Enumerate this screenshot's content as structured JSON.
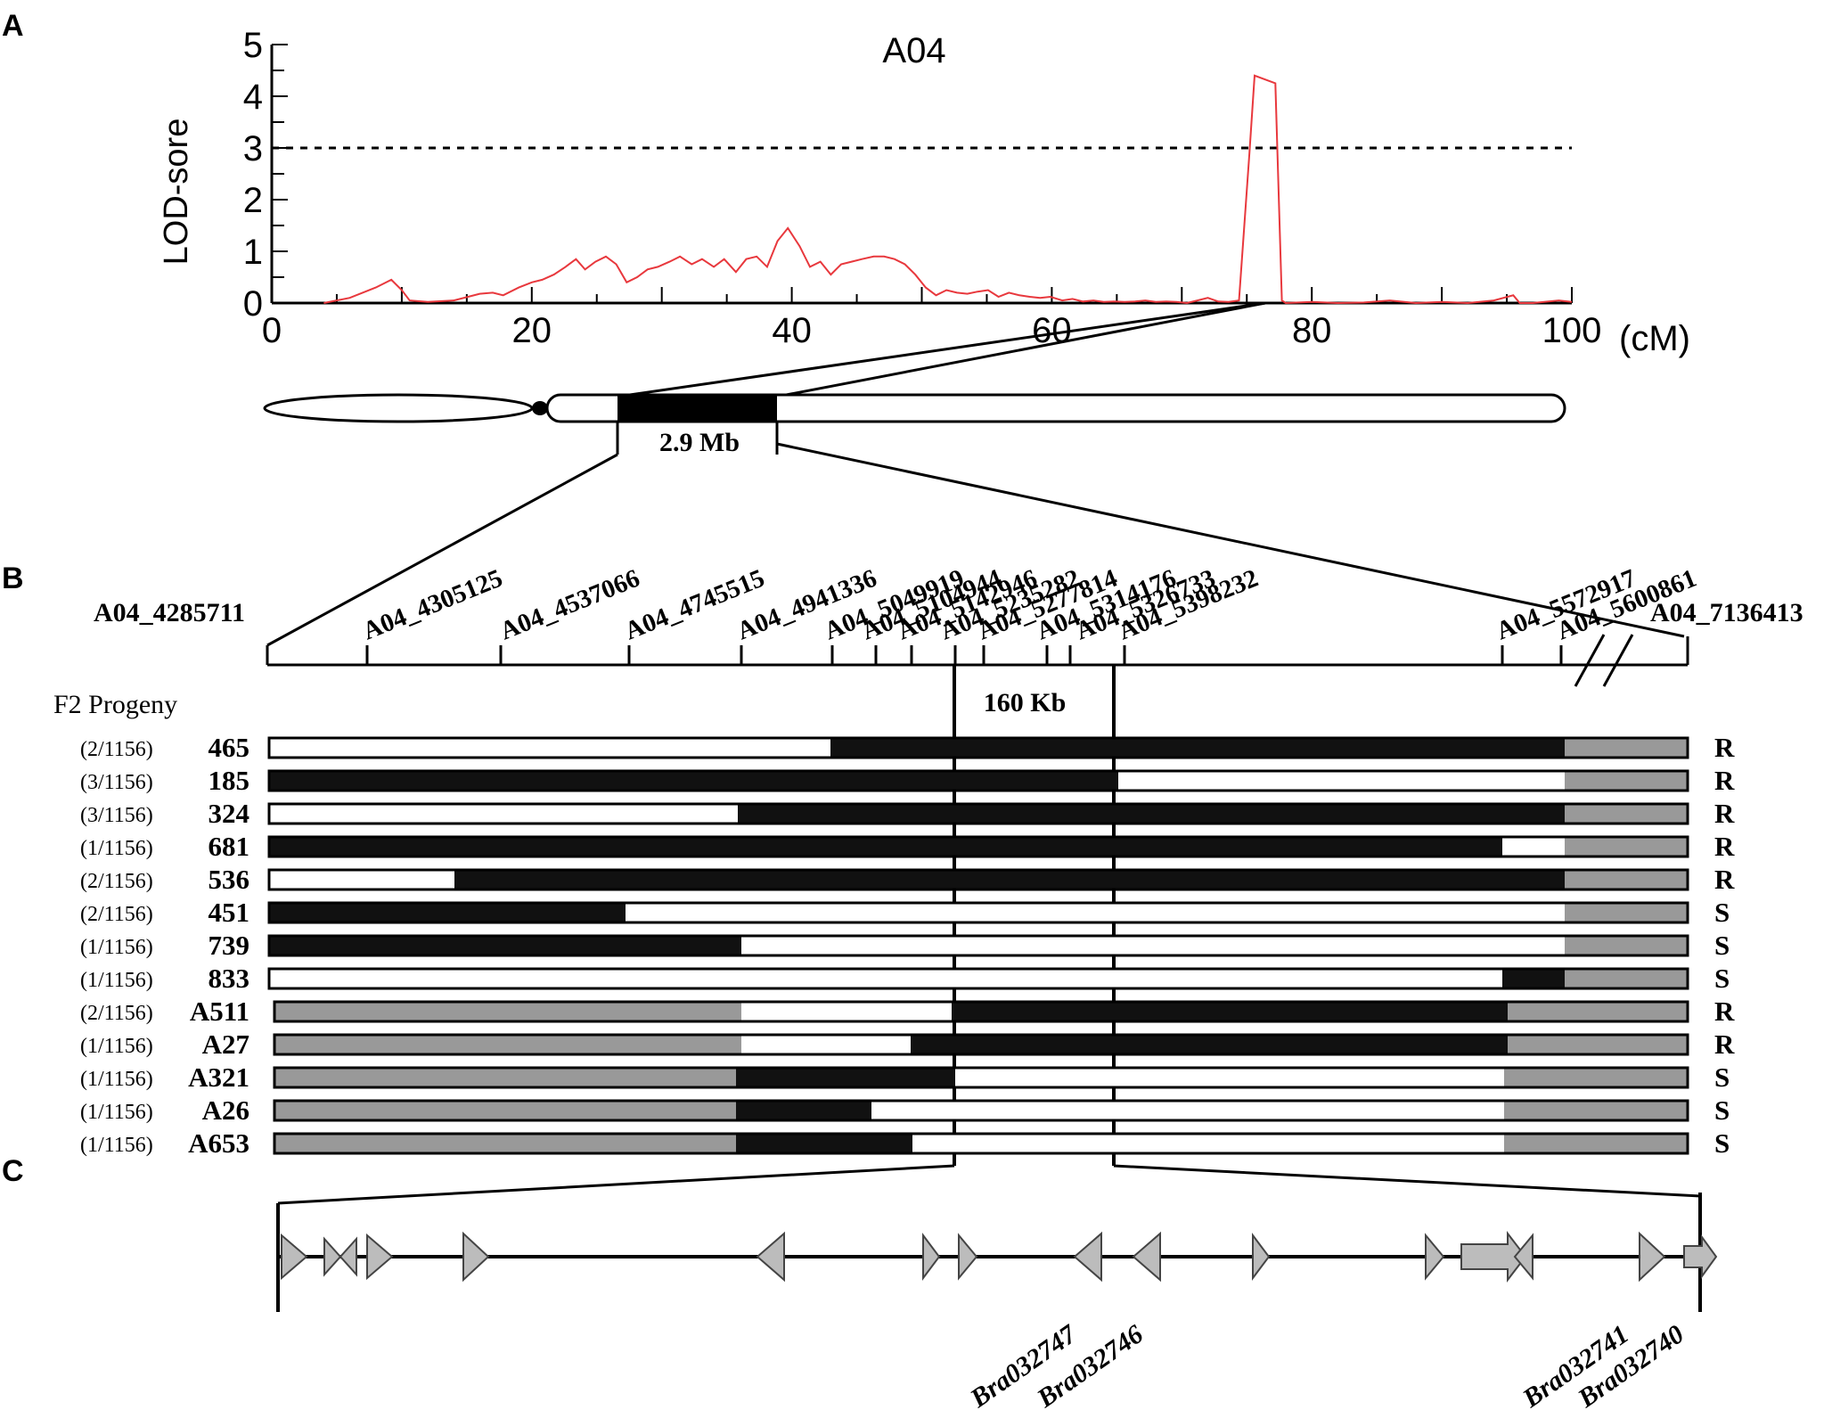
{
  "panels": {
    "a": "A",
    "b": "B",
    "c": "C"
  },
  "chart_data": {
    "type": "line",
    "title": "A04",
    "ylabel": "LOD-sore",
    "xlabel": "",
    "x_unit_label": "(cM)",
    "xlim": [
      0,
      100
    ],
    "ylim": [
      0,
      5
    ],
    "x_ticks": [
      "0",
      "20",
      "40",
      "60",
      "80",
      "100"
    ],
    "y_ticks": [
      "0",
      "1",
      "2",
      "3",
      "4",
      "5"
    ],
    "threshold": 3,
    "line_color": "#e8383d",
    "series": [
      {
        "name": "LOD",
        "x": [
          4,
          6,
          8,
          9.2,
          10,
          10.6,
          12,
          14,
          16,
          17,
          17.8,
          19,
          20,
          20.8,
          21.7,
          22.6,
          23.4,
          24.1,
          24.9,
          25.7,
          26.5,
          27.3,
          28.1,
          28.9,
          29.7,
          30.6,
          31.4,
          32.3,
          33.1,
          34,
          34.8,
          35.7,
          36.5,
          37.3,
          38.1,
          38.9,
          39.7,
          40.6,
          41.4,
          42.2,
          43,
          43.8,
          44.6,
          45.4,
          46.3,
          47.1,
          47.9,
          48.7,
          49.5,
          50.3,
          51.1,
          51.9,
          52.7,
          53.5,
          54.3,
          55.1,
          55.9,
          56.7,
          57.5,
          58.3,
          59.1,
          59.9,
          60.8,
          61.6,
          62.4,
          63.2,
          64,
          64.8,
          65.6,
          66.4,
          67.2,
          68,
          68.8,
          69.6,
          70.4,
          71.2,
          72,
          72.8,
          73.6,
          74.4,
          75.2,
          75.6,
          77.2,
          77.7,
          78,
          80,
          82,
          84,
          86,
          88,
          90,
          92,
          94,
          95.5,
          96,
          97,
          99,
          100
        ],
        "y": [
          0,
          0.1,
          0.3,
          0.45,
          0.25,
          0.05,
          0.02,
          0.05,
          0.18,
          0.2,
          0.15,
          0.3,
          0.4,
          0.45,
          0.55,
          0.7,
          0.85,
          0.65,
          0.8,
          0.9,
          0.75,
          0.4,
          0.5,
          0.65,
          0.7,
          0.8,
          0.9,
          0.75,
          0.85,
          0.7,
          0.85,
          0.6,
          0.85,
          0.9,
          0.7,
          1.2,
          1.45,
          1.1,
          0.7,
          0.8,
          0.55,
          0.75,
          0.8,
          0.85,
          0.9,
          0.9,
          0.85,
          0.75,
          0.55,
          0.3,
          0.15,
          0.25,
          0.2,
          0.18,
          0.22,
          0.25,
          0.12,
          0.2,
          0.15,
          0.12,
          0.1,
          0.12,
          0.05,
          0.08,
          0.03,
          0.05,
          0.02,
          0.03,
          0.02,
          0.03,
          0.05,
          0.02,
          0.03,
          0.02,
          0,
          0.05,
          0.1,
          0.03,
          0.02,
          0.05,
          2.9,
          4.4,
          4.25,
          0.05,
          0,
          0.02,
          0,
          0.01,
          0.05,
          0,
          0.02,
          0,
          0.05,
          0.15,
          0,
          0,
          0.05,
          0.02
        ]
      }
    ]
  },
  "chromosome": {
    "region_label": "2.9 Mb"
  },
  "markers": {
    "left_end": "A04_4285711",
    "right_end": "A04_7136413",
    "labels": [
      "A04_4305125",
      "A04_4537066",
      "A04_4745515",
      "A04_4941336",
      "A04_5049919",
      "A04_5104944",
      "A04_5142946",
      "A04_5235282",
      "A04_5277814",
      "A04_5314176",
      "A04_5326733",
      "A04_5398232",
      "A04_5572917",
      "A04_5600861"
    ],
    "interval_label": "160 Kb"
  },
  "progeny": {
    "title": "F2 Progeny",
    "rows": [
      {
        "count": "(2/1156)",
        "id": "465",
        "phenotype": "R"
      },
      {
        "count": "(3/1156)",
        "id": "185",
        "phenotype": "R"
      },
      {
        "count": "(3/1156)",
        "id": "324",
        "phenotype": "R"
      },
      {
        "count": "(1/1156)",
        "id": "681",
        "phenotype": "R"
      },
      {
        "count": "(2/1156)",
        "id": "536",
        "phenotype": "R"
      },
      {
        "count": "(2/1156)",
        "id": "451",
        "phenotype": "S"
      },
      {
        "count": "(1/1156)",
        "id": "739",
        "phenotype": "S"
      },
      {
        "count": "(1/1156)",
        "id": "833",
        "phenotype": "S"
      },
      {
        "count": "(2/1156)",
        "id": "A511",
        "phenotype": "R"
      },
      {
        "count": "(1/1156)",
        "id": "A27",
        "phenotype": "R"
      },
      {
        "count": "(1/1156)",
        "id": "A321",
        "phenotype": "S"
      },
      {
        "count": "(1/1156)",
        "id": "A26",
        "phenotype": "S"
      },
      {
        "count": "(1/1156)",
        "id": "A653",
        "phenotype": "S"
      }
    ]
  },
  "genes": {
    "labels": [
      "Bra032747",
      "Bra032746",
      "Bra032741",
      "Bra032740"
    ]
  }
}
